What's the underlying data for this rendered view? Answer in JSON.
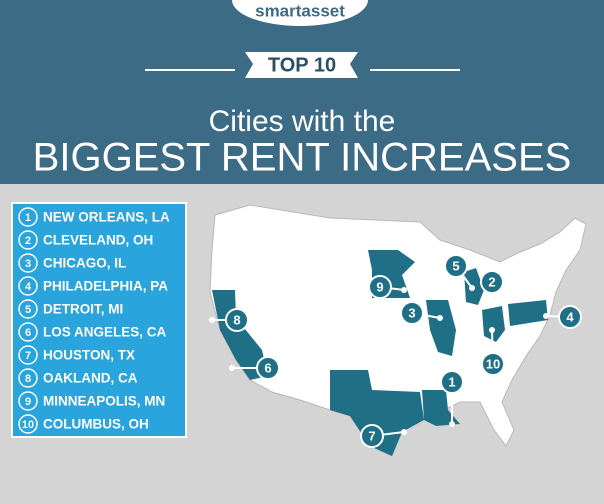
{
  "header": {
    "brand": "smartasset",
    "badge": "TOP 10",
    "title_line1": "Cities with the",
    "title_line2": "BIGGEST RENT INCREASES"
  },
  "list": [
    {
      "rank": "1",
      "city": "NEW ORLEANS, LA"
    },
    {
      "rank": "2",
      "city": "CLEVELAND, OH"
    },
    {
      "rank": "3",
      "city": "CHICAGO, IL"
    },
    {
      "rank": "4",
      "city": "PHILADELPHIA, PA"
    },
    {
      "rank": "5",
      "city": "DETROIT, MI"
    },
    {
      "rank": "6",
      "city": "LOS ANGELES, CA"
    },
    {
      "rank": "7",
      "city": "HOUSTON, TX"
    },
    {
      "rank": "8",
      "city": "OAKLAND, CA"
    },
    {
      "rank": "9",
      "city": "MINNEAPOLIS, MN"
    },
    {
      "rank": "10",
      "city": "COLUMBUS, OH"
    }
  ]
}
